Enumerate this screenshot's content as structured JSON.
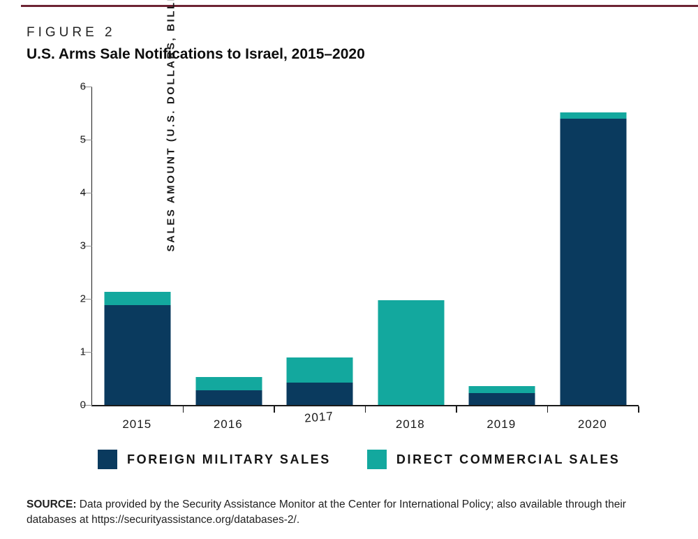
{
  "page": {
    "figure_label": "FIGURE 2",
    "title": "U.S. Arms Sale Notifications to Israel, 2015–2020"
  },
  "colors": {
    "fms_navy": "#0a3a5e",
    "dcs_teal": "#13a89e",
    "top_rule": "#6d2333",
    "axis": "#1a1a1a",
    "tick_gray": "#8a8a8a"
  },
  "chart_data": {
    "type": "bar",
    "stacked": true,
    "title": "U.S. Arms Sale Notifications to Israel, 2015–2020",
    "xlabel": "",
    "ylabel": "SALES AMOUNT (U.S. DOLLARS, BILLIONS)",
    "ylim": [
      0,
      6
    ],
    "yticks": [
      0,
      1,
      2,
      3,
      4,
      5,
      6
    ],
    "grid": false,
    "legend_position": "bottom",
    "categories": [
      "2015",
      "2016",
      "2017",
      "2018",
      "2019",
      "2020"
    ],
    "series": [
      {
        "name": "FOREIGN MILITARY SALES",
        "color_key": "fms_navy",
        "values": [
          1.88,
          0.28,
          0.42,
          0,
          0.22,
          5.39
        ]
      },
      {
        "name": "DIRECT COMMERCIAL SALES",
        "color_key": "dcs_teal",
        "values": [
          0.25,
          0.25,
          0.47,
          1.97,
          0.13,
          0.12
        ]
      }
    ]
  },
  "source": {
    "prefix": "SOURCE:",
    "text": " Data provided by the Security Assistance Monitor at the Center for International Policy; also available through their databases at https://securityassistance.org/databases-2/."
  }
}
